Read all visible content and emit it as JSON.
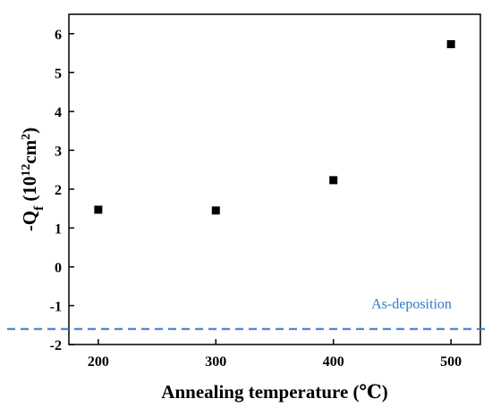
{
  "chart_data": {
    "type": "scatter",
    "title": "",
    "xlabel": "Annealing temperature (℃)",
    "ylabel": {
      "base": "-Q",
      "sub": "f",
      "open": " (10",
      "sup1": "12",
      "mid": "cm",
      "sup2": "2",
      "close": ")"
    },
    "xlim": [
      175,
      525
    ],
    "ylim": [
      -2,
      6.5
    ],
    "x_ticks": [
      200,
      300,
      400,
      500
    ],
    "y_ticks": [
      -2,
      -1,
      0,
      1,
      2,
      3,
      4,
      5,
      6
    ],
    "x_tick_labels": [
      "200",
      "300",
      "400",
      "500"
    ],
    "y_tick_labels": [
      "-2",
      "-1",
      "0",
      "1",
      "2",
      "3",
      "4",
      "5",
      "6"
    ],
    "series": [
      {
        "marker": "square",
        "color": "#000000",
        "points": [
          {
            "x": 200,
            "y": 1.47
          },
          {
            "x": 300,
            "y": 1.45
          },
          {
            "x": 400,
            "y": 2.23
          },
          {
            "x": 500,
            "y": 5.73
          }
        ]
      }
    ],
    "reference_line": {
      "y": -1.6,
      "style": "dashed",
      "color": "#2f76c7",
      "label": "As-deposition"
    },
    "grid": false,
    "legend": "none"
  }
}
